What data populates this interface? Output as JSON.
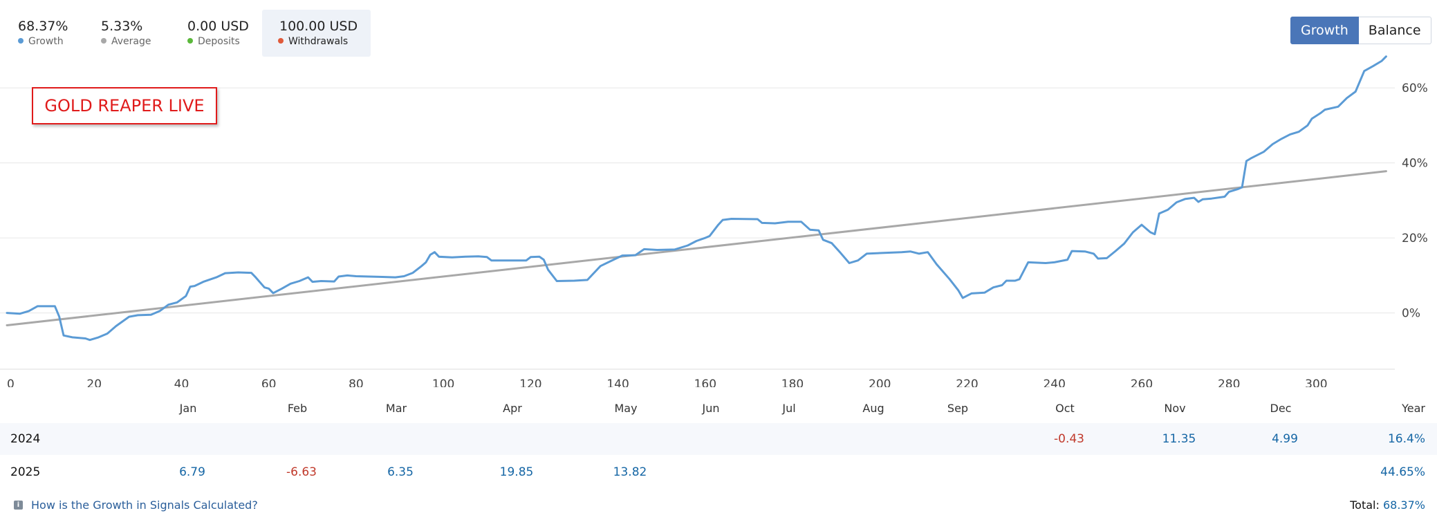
{
  "header": {
    "stats": [
      {
        "value": "68.37%",
        "label": "Growth",
        "dot_color": "#5b9bd5",
        "active": false
      },
      {
        "value": "5.33%",
        "label": "Average",
        "dot_color": "#a8a8a8",
        "active": false
      },
      {
        "value": "0.00 USD",
        "label": "Deposits",
        "dot_color": "#5bb83b",
        "active": false
      },
      {
        "value": "100.00 USD",
        "label": "Withdrawals",
        "dot_color": "#e05a3a",
        "active": true
      }
    ]
  },
  "toggle": {
    "growth_label": "Growth",
    "balance_label": "Balance",
    "selected": "Growth"
  },
  "watermark": {
    "text": "GOLD REAPER LIVE"
  },
  "chart_data": {
    "type": "line",
    "title": "",
    "xlabel": "",
    "ylabel": "",
    "xlim": [
      0,
      318
    ],
    "ylim": [
      -15,
      65
    ],
    "grid": true,
    "x_ticks": [
      0,
      20,
      40,
      60,
      80,
      100,
      120,
      140,
      160,
      180,
      200,
      220,
      240,
      260,
      280,
      300
    ],
    "y_ticks": [
      0,
      20,
      40,
      60
    ],
    "y_tick_labels": [
      "0%",
      "20%",
      "40%",
      "60%"
    ],
    "series": [
      {
        "name": "Growth",
        "color": "#5b9bd5",
        "points": [
          [
            0,
            0
          ],
          [
            3,
            -0.2
          ],
          [
            5,
            0.5
          ],
          [
            7,
            1.8
          ],
          [
            10,
            1.8
          ],
          [
            11,
            1.8
          ],
          [
            12,
            -1
          ],
          [
            13,
            -6
          ],
          [
            15,
            -6.5
          ],
          [
            18,
            -6.8
          ],
          [
            19,
            -7.2
          ],
          [
            21,
            -6.5
          ],
          [
            23,
            -5.5
          ],
          [
            25,
            -3.5
          ],
          [
            28,
            -1
          ],
          [
            30,
            -0.6
          ],
          [
            33,
            -0.5
          ],
          [
            35,
            0.5
          ],
          [
            37,
            2.2
          ],
          [
            39,
            2.8
          ],
          [
            41,
            4.5
          ],
          [
            42,
            7
          ],
          [
            43,
            7.2
          ],
          [
            45,
            8.3
          ],
          [
            48,
            9.5
          ],
          [
            50,
            10.6
          ],
          [
            53,
            10.8
          ],
          [
            56,
            10.7
          ],
          [
            57,
            9.5
          ],
          [
            59,
            6.8
          ],
          [
            60,
            6.5
          ],
          [
            61,
            5.3
          ],
          [
            63,
            6.5
          ],
          [
            65,
            7.8
          ],
          [
            67,
            8.5
          ],
          [
            69,
            9.5
          ],
          [
            70,
            8.3
          ],
          [
            72,
            8.5
          ],
          [
            75,
            8.4
          ],
          [
            76,
            9.7
          ],
          [
            78,
            10
          ],
          [
            80,
            9.8
          ],
          [
            83,
            9.7
          ],
          [
            86,
            9.6
          ],
          [
            89,
            9.5
          ],
          [
            91,
            9.8
          ],
          [
            93,
            10.7
          ],
          [
            95,
            12.5
          ],
          [
            96,
            13.5
          ],
          [
            97,
            15.5
          ],
          [
            98,
            16.2
          ],
          [
            99,
            15
          ],
          [
            102,
            14.8
          ],
          [
            105,
            15
          ],
          [
            108,
            15.1
          ],
          [
            110,
            14.9
          ],
          [
            111,
            14
          ],
          [
            115,
            14
          ],
          [
            119,
            14
          ],
          [
            120,
            14.9
          ],
          [
            122,
            15
          ],
          [
            123,
            14.2
          ],
          [
            124,
            11.5
          ],
          [
            126,
            8.5
          ],
          [
            130,
            8.6
          ],
          [
            133,
            8.8
          ],
          [
            136,
            12.5
          ],
          [
            139,
            14.2
          ],
          [
            141,
            15.3
          ],
          [
            144,
            15.4
          ],
          [
            146,
            17
          ],
          [
            149,
            16.8
          ],
          [
            153,
            16.9
          ],
          [
            156,
            18
          ],
          [
            158,
            19.2
          ],
          [
            160,
            20
          ],
          [
            161,
            20.5
          ],
          [
            163,
            23.5
          ],
          [
            164,
            24.8
          ],
          [
            166,
            25.1
          ],
          [
            172,
            25
          ],
          [
            173,
            24
          ],
          [
            176,
            23.9
          ],
          [
            179,
            24.3
          ],
          [
            182,
            24.3
          ],
          [
            184,
            22.2
          ],
          [
            186,
            22
          ],
          [
            187,
            19.5
          ],
          [
            189,
            18.6
          ],
          [
            191,
            16
          ],
          [
            193,
            13.3
          ],
          [
            195,
            14
          ],
          [
            197,
            15.8
          ],
          [
            201,
            16
          ],
          [
            205,
            16.2
          ],
          [
            207,
            16.4
          ],
          [
            209,
            15.8
          ],
          [
            211,
            16.2
          ],
          [
            213,
            13
          ],
          [
            216,
            9
          ],
          [
            218,
            6
          ],
          [
            219,
            4
          ],
          [
            221,
            5.2
          ],
          [
            224,
            5.4
          ],
          [
            226,
            6.8
          ],
          [
            228,
            7.4
          ],
          [
            229,
            8.6
          ],
          [
            231,
            8.6
          ],
          [
            232,
            9
          ],
          [
            234,
            13.5
          ],
          [
            238,
            13.3
          ],
          [
            240,
            13.5
          ],
          [
            243,
            14.2
          ],
          [
            244,
            16.5
          ],
          [
            247,
            16.4
          ],
          [
            249,
            15.8
          ],
          [
            250,
            14.5
          ],
          [
            252,
            14.6
          ],
          [
            254,
            16.5
          ],
          [
            256,
            18.5
          ],
          [
            258,
            21.5
          ],
          [
            260,
            23.5
          ],
          [
            262,
            21.5
          ],
          [
            263,
            21
          ],
          [
            264,
            26.5
          ],
          [
            266,
            27.5
          ],
          [
            268,
            29.5
          ],
          [
            270,
            30.4
          ],
          [
            272,
            30.7
          ],
          [
            273,
            29.6
          ],
          [
            274,
            30.3
          ],
          [
            276,
            30.5
          ],
          [
            279,
            31
          ],
          [
            280,
            32.3
          ],
          [
            282,
            33
          ],
          [
            283,
            33.5
          ],
          [
            284,
            40.5
          ],
          [
            285,
            41.2
          ],
          [
            288,
            43
          ],
          [
            290,
            45
          ],
          [
            292,
            46.4
          ],
          [
            294,
            47.6
          ],
          [
            296,
            48.3
          ],
          [
            298,
            50
          ],
          [
            299,
            51.8
          ],
          [
            301,
            53.3
          ],
          [
            302,
            54.2
          ],
          [
            305,
            55
          ],
          [
            307,
            57.3
          ],
          [
            309,
            59
          ],
          [
            311,
            64.5
          ],
          [
            313,
            65.8
          ],
          [
            315,
            67.2
          ],
          [
            316,
            68.37
          ]
        ]
      },
      {
        "name": "Average",
        "color": "#a8a8a8",
        "points": [
          [
            0,
            -3.3
          ],
          [
            316,
            37.8
          ]
        ]
      }
    ]
  },
  "monthly_table": {
    "headers": [
      "Jan",
      "Feb",
      "Mar",
      "Apr",
      "May",
      "Jun",
      "Jul",
      "Aug",
      "Sep",
      "Oct",
      "Nov",
      "Dec",
      "Year"
    ],
    "rows": [
      {
        "year": "2024",
        "cells": [
          {
            "month": "Oct",
            "value": "-0.43",
            "sign": "neg"
          },
          {
            "month": "Nov",
            "value": "11.35",
            "sign": "pos"
          },
          {
            "month": "Dec",
            "value": "4.99",
            "sign": "pos"
          }
        ],
        "year_total": "16.4%"
      },
      {
        "year": "2025",
        "cells": [
          {
            "month": "Jan",
            "value": "6.79",
            "sign": "pos"
          },
          {
            "month": "Feb",
            "value": "-6.63",
            "sign": "neg"
          },
          {
            "month": "Mar",
            "value": "6.35",
            "sign": "pos"
          },
          {
            "month": "Apr",
            "value": "19.85",
            "sign": "pos"
          },
          {
            "month": "May",
            "value": "13.82",
            "sign": "pos"
          }
        ],
        "year_total": "44.65%"
      }
    ]
  },
  "footer": {
    "help_link": "How is the Growth in Signals Calculated?",
    "total_label": "Total:",
    "total_value": "68.37%"
  }
}
